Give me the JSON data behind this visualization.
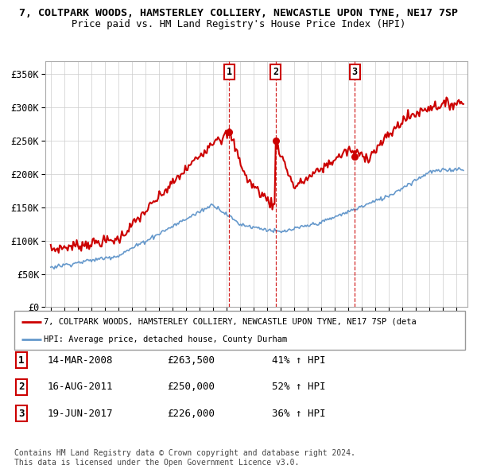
{
  "title1": "7, COLTPARK WOODS, HAMSTERLEY COLLIERY, NEWCASTLE UPON TYNE, NE17 7SP",
  "title2": "Price paid vs. HM Land Registry's House Price Index (HPI)",
  "ylim": [
    0,
    370000
  ],
  "yticks": [
    0,
    50000,
    100000,
    150000,
    200000,
    250000,
    300000,
    350000
  ],
  "ytick_labels": [
    "£0",
    "£50K",
    "£100K",
    "£150K",
    "£200K",
    "£250K",
    "£300K",
    "£350K"
  ],
  "sale_dates": [
    2008.2,
    2011.62,
    2017.46
  ],
  "sale_prices": [
    263500,
    250000,
    226000
  ],
  "sale_labels": [
    "1",
    "2",
    "3"
  ],
  "vline_color": "#cc0000",
  "red_line_color": "#cc0000",
  "blue_line_color": "#6699cc",
  "legend_red": "7, COLTPARK WOODS, HAMSTERLEY COLLIERY, NEWCASTLE UPON TYNE, NE17 7SP (deta",
  "legend_blue": "HPI: Average price, detached house, County Durham",
  "table_rows": [
    [
      "1",
      "14-MAR-2008",
      "£263,500",
      "41% ↑ HPI"
    ],
    [
      "2",
      "16-AUG-2011",
      "£250,000",
      "52% ↑ HPI"
    ],
    [
      "3",
      "19-JUN-2017",
      "£226,000",
      "36% ↑ HPI"
    ]
  ],
  "footer": "Contains HM Land Registry data © Crown copyright and database right 2024.\nThis data is licensed under the Open Government Licence v3.0.",
  "background_color": "#ffffff",
  "plot_bg_color": "#ffffff",
  "grid_color": "#cccccc"
}
